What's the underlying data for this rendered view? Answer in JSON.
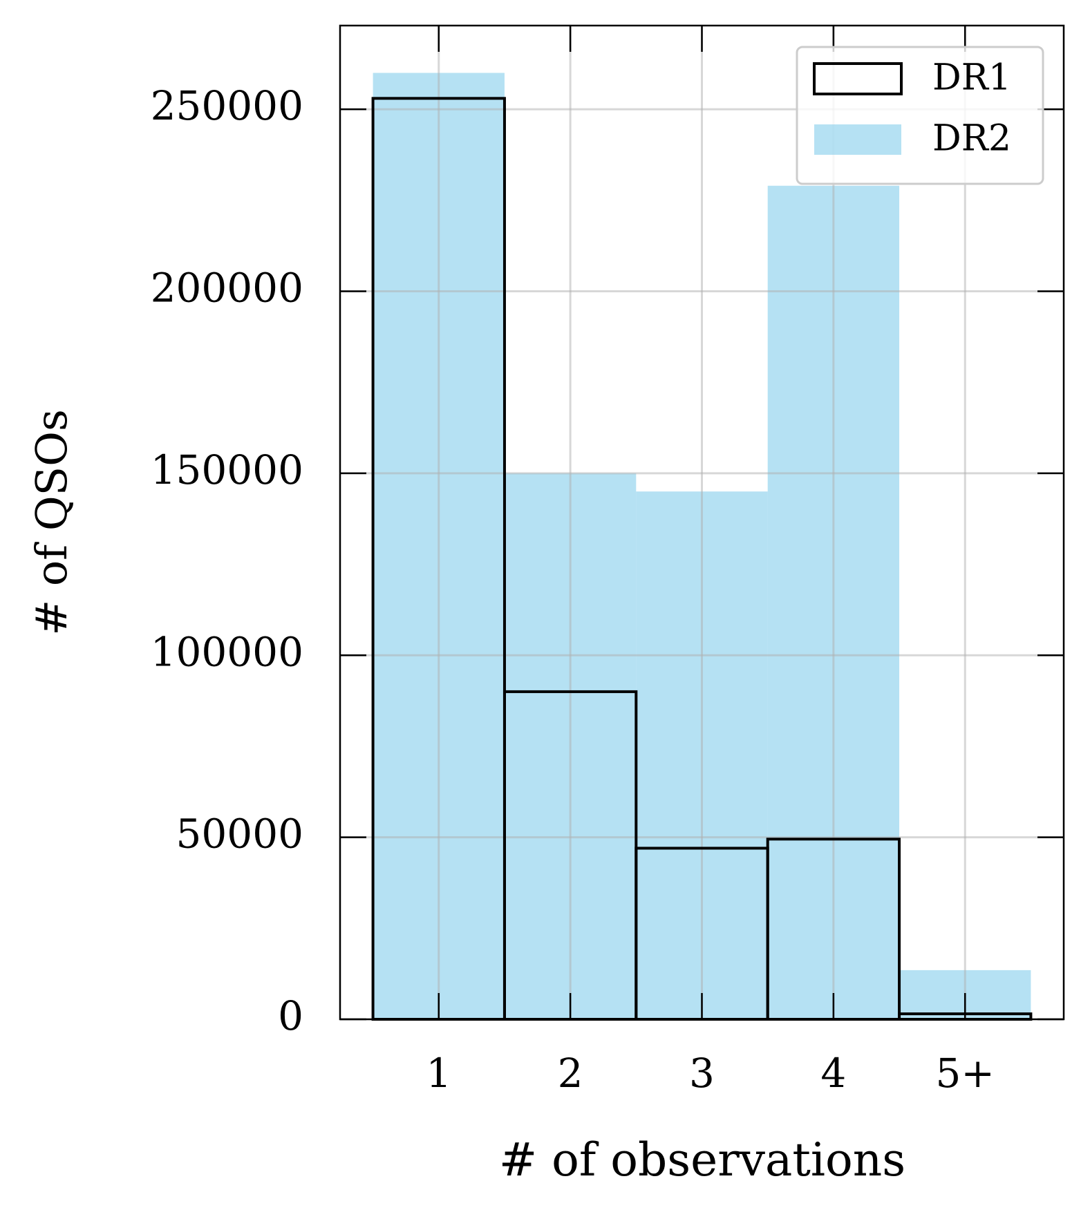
{
  "chart_data": {
    "type": "bar",
    "x_label": "# of observations",
    "y_label": "# of QSOs",
    "categories": [
      "1",
      "2",
      "3",
      "4",
      "5+"
    ],
    "series": [
      {
        "name": "DR1",
        "color": "#000000",
        "filled": false,
        "values": [
          253000,
          90000,
          47000,
          49500,
          1500
        ]
      },
      {
        "name": "DR2",
        "color": "#87ceeb",
        "filled": true,
        "values": [
          260000,
          150000,
          145000,
          229000,
          13500
        ]
      }
    ],
    "ylim": [
      0,
      273000
    ],
    "yticks": [
      0,
      50000,
      100000,
      150000,
      200000,
      250000
    ],
    "grid": true,
    "legend": "upper right"
  }
}
